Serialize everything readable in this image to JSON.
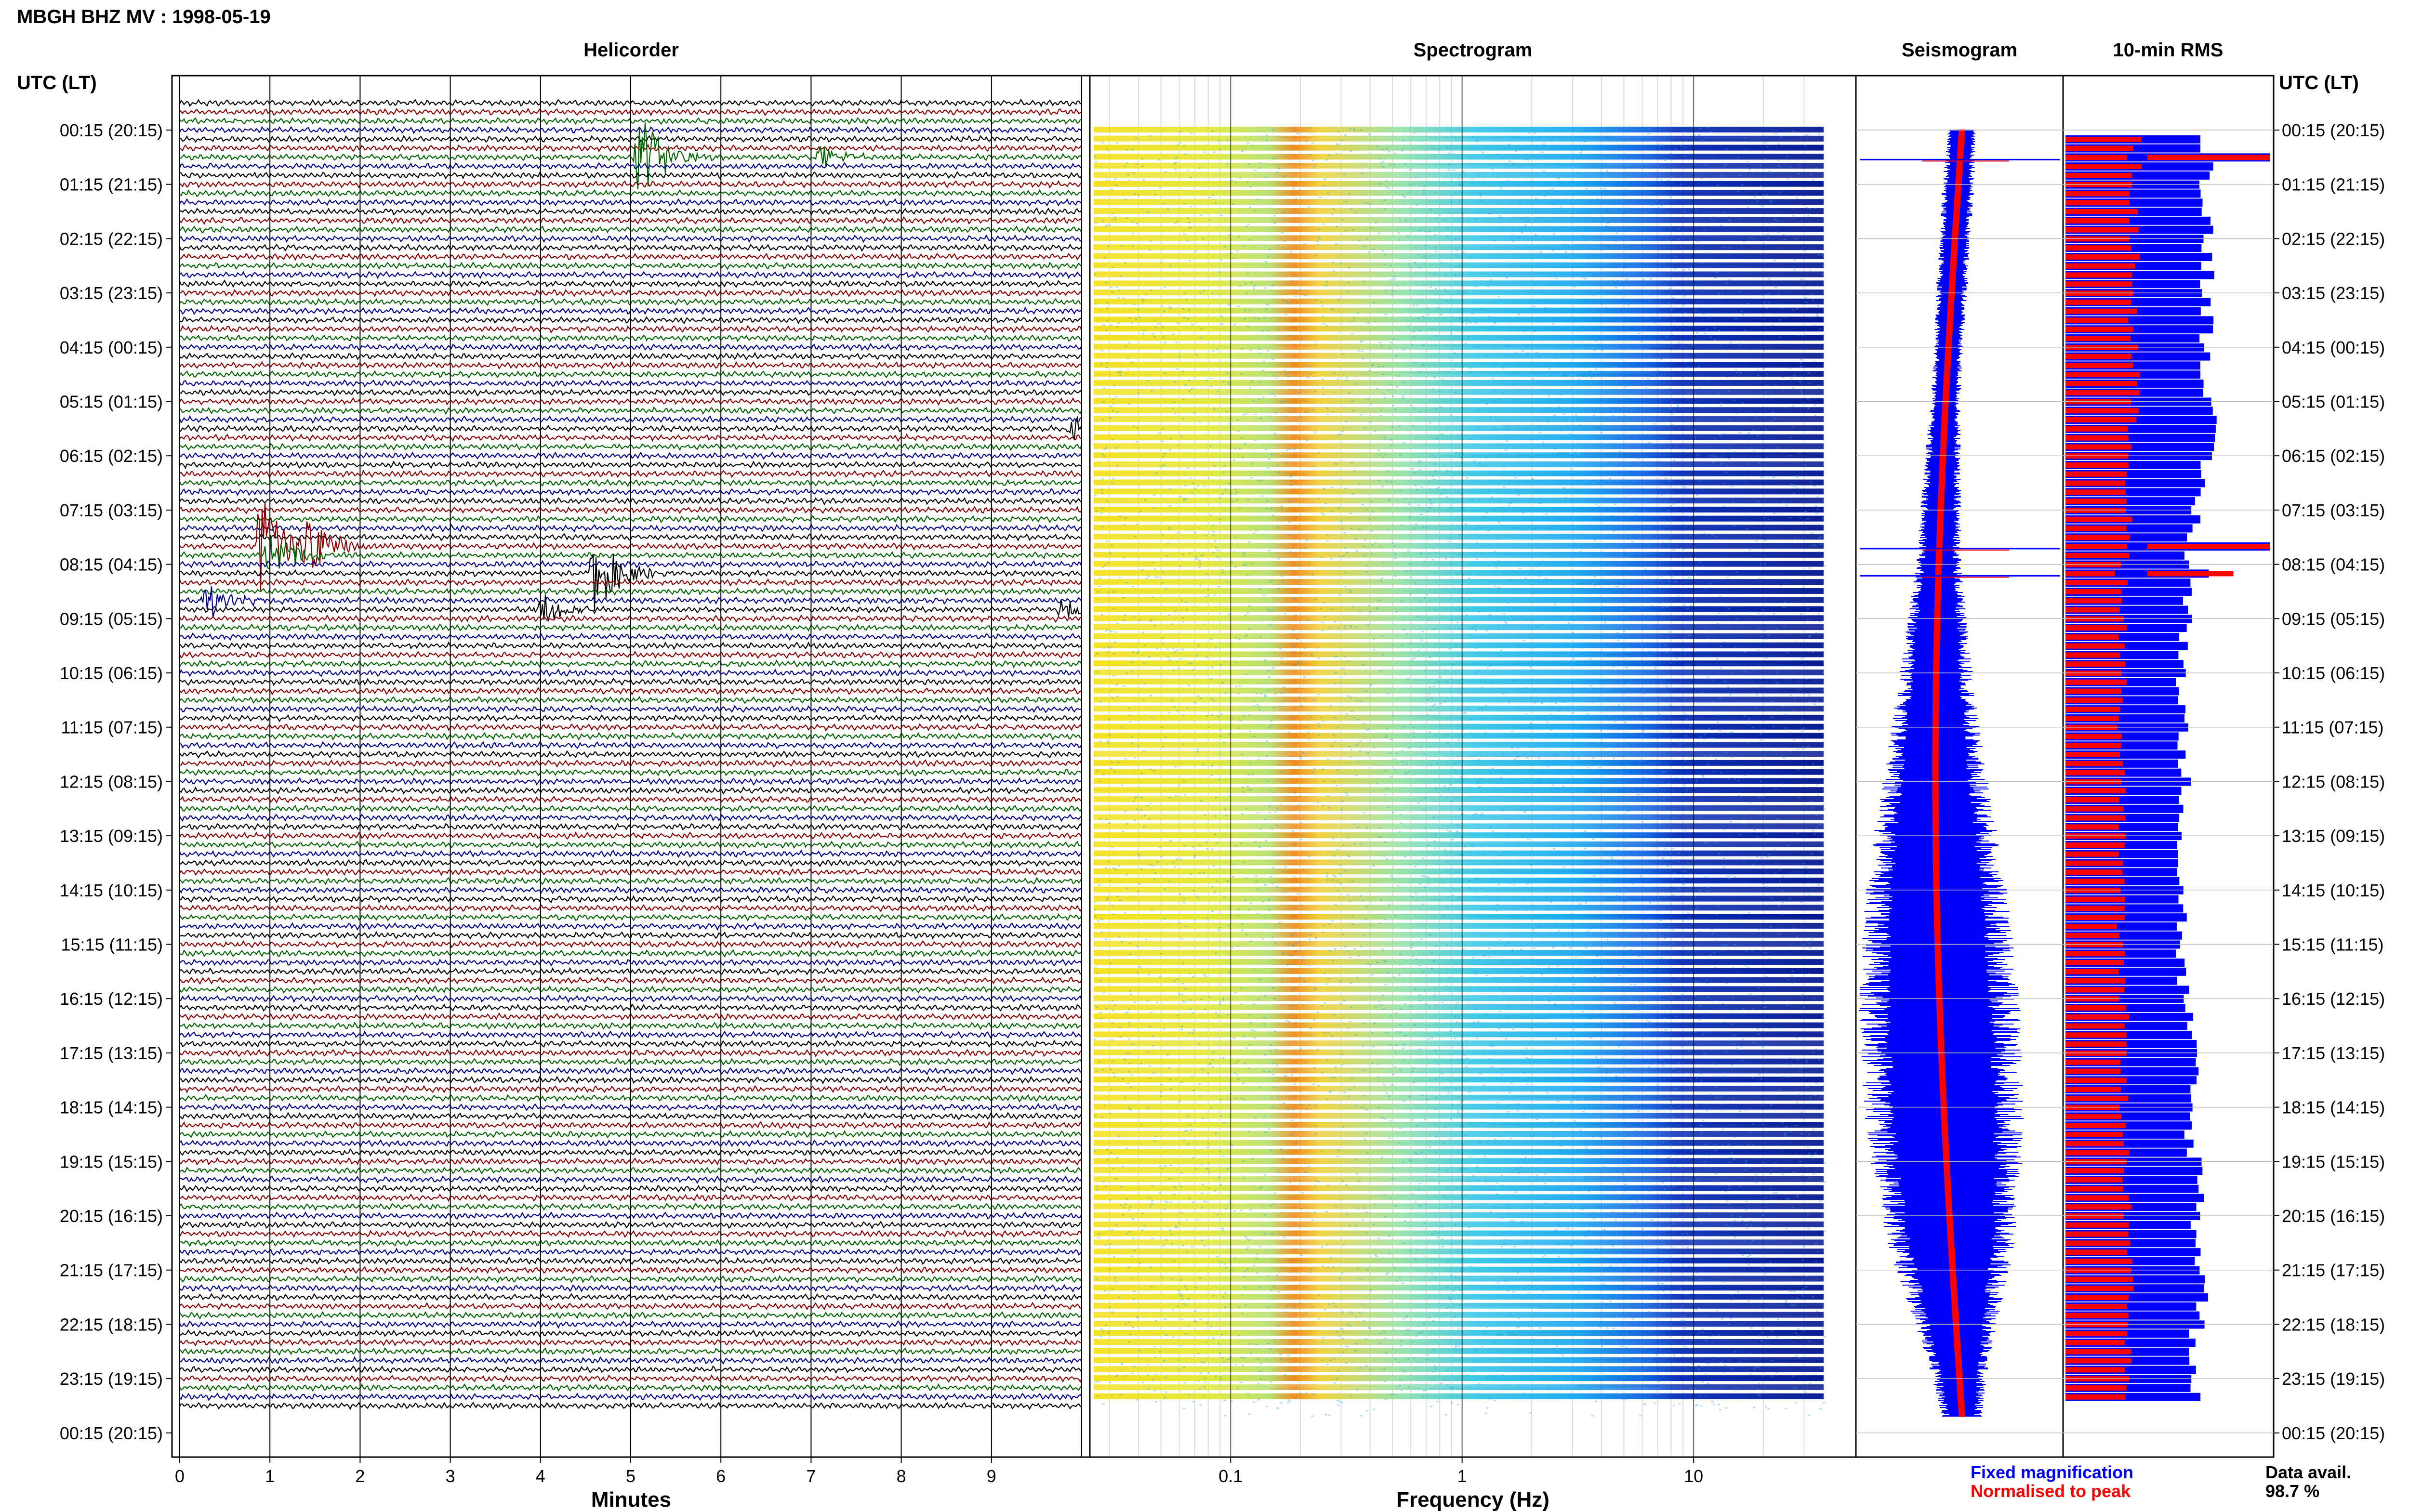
{
  "header": {
    "title": "MBGH BHZ MV : 1998-05-19",
    "left_time_heading": "UTC (LT)",
    "right_time_heading": "UTC (LT)"
  },
  "panels": {
    "helicorder": "Helicorder",
    "spectrogram": "Spectrogram",
    "seismogram": "Seismogram",
    "rms": "10-min RMS"
  },
  "legend": {
    "fixed": "Fixed magnification",
    "normalised": "Normalised to peak",
    "data_avail_label": "Data avail.",
    "data_avail_value": "98.7 %",
    "fixed_color": "#0000ff",
    "normalised_color": "#ff0000"
  },
  "colors": {
    "trace_cycle": [
      "#000000",
      "#8b0000",
      "#006400",
      "#00008b"
    ],
    "spectrogram_low": "#ffff00",
    "spectrogram_peak": "#ff6600",
    "spectrogram_high": "#00008b"
  },
  "chart_data": [
    {
      "type": "line",
      "title": "Helicorder",
      "xlabel": "Minutes",
      "ylabel": "UTC (LT)",
      "xlim": [
        0,
        10
      ],
      "x_ticks": [
        "0",
        "1",
        "2",
        "3",
        "4",
        "5",
        "6",
        "7",
        "8",
        "9"
      ],
      "y_ticks": [
        "00:15 (20:15)",
        "01:15 (21:15)",
        "02:15 (22:15)",
        "03:15 (23:15)",
        "04:15 (00:15)",
        "05:15 (01:15)",
        "06:15 (02:15)",
        "07:15 (03:15)",
        "08:15 (04:15)",
        "09:15 (05:15)",
        "10:15 (06:15)",
        "11:15 (07:15)",
        "12:15 (08:15)",
        "13:15 (09:15)",
        "14:15 (10:15)",
        "15:15 (11:15)",
        "16:15 (12:15)",
        "17:15 (13:15)",
        "18:15 (14:15)",
        "19:15 (15:15)",
        "20:15 (16:15)",
        "21:15 (17:15)",
        "22:15 (18:15)",
        "23:15 (19:15)",
        "00:15 (20:15)"
      ],
      "events": [
        {
          "row": 6,
          "minute": 5.1,
          "amplitude": 2.5
        },
        {
          "row": 6,
          "minute": 7.1,
          "amplitude": 0.7
        },
        {
          "row": 49,
          "minute": 0.9,
          "amplitude": 3.2
        },
        {
          "row": 49,
          "minute": 1.4,
          "amplitude": 2.0
        },
        {
          "row": 50,
          "minute": 1.0,
          "amplitude": 1.5
        },
        {
          "row": 52,
          "minute": 4.6,
          "amplitude": 2.3
        },
        {
          "row": 55,
          "minute": 0.3,
          "amplitude": 1.1
        },
        {
          "row": 56,
          "minute": 4.0,
          "amplitude": 0.9
        },
        {
          "row": 56,
          "minute": 9.8,
          "amplitude": 0.7
        },
        {
          "row": 36,
          "minute": 9.9,
          "amplitude": 1.0
        }
      ]
    },
    {
      "type": "heatmap",
      "title": "Spectrogram",
      "xlabel": "Frequency (Hz)",
      "x_scale": "log",
      "xlim": [
        0.025,
        40
      ],
      "x_ticks": [
        "0.1",
        "1",
        "10"
      ],
      "peak_band_hz": [
        0.2,
        0.3
      ]
    },
    {
      "type": "line",
      "title": "Seismogram",
      "fixed_envelope_halfwidth": [
        0.15,
        0.16,
        0.15,
        0.16,
        0.14,
        0.15,
        0.17,
        0.2,
        0.22,
        0.28,
        0.35,
        0.42,
        0.5,
        0.6,
        0.68,
        0.74,
        0.78,
        0.8,
        0.79,
        0.76,
        0.7,
        0.6,
        0.45,
        0.3,
        0.2
      ],
      "normalised_envelope_halfwidth": [
        0.03,
        0.03,
        0.03,
        0.03,
        0.03,
        0.03,
        0.03,
        0.03,
        0.03,
        0.03,
        0.03,
        0.03,
        0.03,
        0.03,
        0.03,
        0.03,
        0.03,
        0.03,
        0.03,
        0.03,
        0.03,
        0.03,
        0.03,
        0.03,
        0.03
      ],
      "spike_rows": [
        6,
        49,
        52
      ]
    },
    {
      "type": "bar",
      "title": "10-min RMS",
      "orientation": "horizontal",
      "series": [
        {
          "name": "Fixed magnification",
          "values": [
            0.68,
            0.7,
            0.69,
            0.7,
            0.69,
            0.7,
            0.7,
            0.66,
            0.62,
            0.6,
            0.58,
            0.57,
            0.57,
            0.59,
            0.56,
            0.57,
            0.56,
            0.6,
            0.62,
            0.6,
            0.66,
            0.64,
            0.68,
            0.63,
            0.64
          ]
        },
        {
          "name": "Normalised to peak",
          "values": [
            0.34,
            0.35,
            0.33,
            0.34,
            0.33,
            0.34,
            0.33,
            0.31,
            0.3,
            0.29,
            0.28,
            0.28,
            0.27,
            0.28,
            0.27,
            0.27,
            0.27,
            0.29,
            0.29,
            0.28,
            0.3,
            0.3,
            0.31,
            0.3,
            0.3
          ]
        }
      ],
      "spikes": [
        {
          "row": 6,
          "value": 1.0
        },
        {
          "row": 49,
          "value": 1.0
        },
        {
          "row": 52,
          "value": 0.7
        }
      ]
    }
  ]
}
